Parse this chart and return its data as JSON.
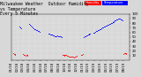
{
  "title": "Milwaukee Weather  Outdoor Humidity\nvs Temperature\nEvery 5 Minutes",
  "bg_color": "#d8d8d8",
  "plot_bg": "#d8d8d8",
  "grid_color": "#ffffff",
  "blue_color": "#0000ff",
  "red_color": "#ff0000",
  "legend_red_label": "Humidity",
  "legend_blue_label": "Temperature",
  "xlim": [
    0,
    288
  ],
  "ylim": [
    0,
    100
  ],
  "title_fontsize": 3.5,
  "tick_fontsize": 2.8,
  "blue_x": [
    20,
    21,
    22,
    23,
    44,
    46,
    48,
    50,
    52,
    54,
    56,
    58,
    60,
    62,
    64,
    66,
    68,
    90,
    92,
    94,
    96,
    98,
    100,
    102,
    104,
    106,
    108,
    110,
    112,
    114,
    116,
    118,
    120,
    122,
    176,
    178,
    180,
    182,
    184,
    186,
    188,
    190,
    192,
    200,
    202,
    204,
    206,
    208,
    210,
    212,
    214,
    216,
    218,
    220,
    222,
    224,
    226,
    228,
    230,
    232,
    234,
    236,
    238,
    240,
    242,
    244,
    246,
    248,
    250,
    252,
    254,
    256,
    258,
    260,
    262,
    264,
    266,
    268,
    270
  ],
  "blue_y": [
    72,
    71,
    70,
    69,
    78,
    76,
    74,
    72,
    70,
    68,
    67,
    66,
    65,
    64,
    63,
    62,
    61,
    58,
    57,
    56,
    55,
    56,
    55,
    54,
    53,
    52,
    51,
    52,
    53,
    52,
    51,
    52,
    51,
    50,
    50,
    51,
    52,
    53,
    54,
    55,
    56,
    57,
    58,
    59,
    60,
    61,
    62,
    63,
    64,
    65,
    66,
    67,
    68,
    69,
    70,
    71,
    72,
    73,
    74,
    75,
    76,
    77,
    78,
    79,
    80,
    81,
    82,
    83,
    84,
    85,
    86,
    87,
    88,
    89,
    90,
    89,
    88,
    87,
    86
  ],
  "red_x": [
    4,
    6,
    8,
    10,
    28,
    30,
    32,
    34,
    36,
    38,
    40,
    124,
    126,
    128,
    130,
    132,
    134,
    136,
    138,
    140,
    142,
    144,
    146,
    148,
    150,
    152,
    154,
    156,
    158,
    160,
    170,
    172,
    174,
    272,
    274,
    276,
    278,
    280
  ],
  "red_y": [
    15,
    14,
    13,
    12,
    13,
    12,
    11,
    10,
    11,
    10,
    11,
    12,
    11,
    10,
    11,
    12,
    11,
    10,
    9,
    8,
    7,
    8,
    7,
    8,
    7,
    6,
    7,
    8,
    9,
    10,
    11,
    12,
    13,
    14,
    15,
    16,
    15,
    14
  ],
  "x_tick_positions": [
    0,
    14.4,
    28.8,
    43.2,
    57.6,
    72,
    86.4,
    100.8,
    115.2,
    129.6,
    144,
    158.4,
    172.8,
    187.2,
    201.6,
    216,
    230.4,
    244.8,
    259.2,
    273.6
  ],
  "x_tick_labels": [
    "01/18",
    "02/18",
    "03/18",
    "04/18",
    "05/18",
    "06/18",
    "07/18",
    "08/18",
    "09/18",
    "10/18",
    "11/18",
    "12/18",
    "01/19",
    "02/19",
    "03/19",
    "04/19",
    "05/19",
    "06/19",
    "07/19",
    "08/19"
  ],
  "y_tick_positions": [
    10,
    20,
    30,
    40,
    50,
    60,
    70,
    80,
    90,
    100
  ],
  "y_tick_labels": [
    "10",
    "20",
    "30",
    "40",
    "50",
    "60",
    "70",
    "80",
    "90",
    "100"
  ]
}
